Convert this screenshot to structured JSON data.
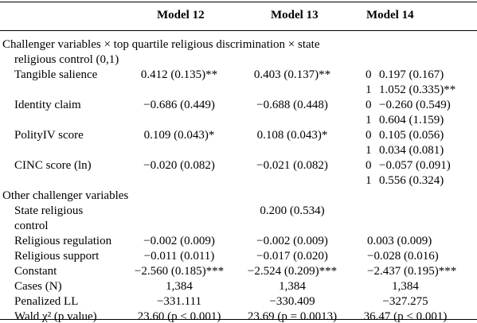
{
  "headers": {
    "col0": "",
    "model12": "Model 12",
    "model13": "Model 13",
    "model14": "Model 14"
  },
  "sections": [
    {
      "title_lines": [
        "Challenger variables × top quartile religious discrimination × state",
        "religious control (0,1)"
      ],
      "rows": [
        {
          "label_lines": [
            "Tangible salience"
          ],
          "m12": "0.412 (0.135)**",
          "m13": "0.403 (0.137)**",
          "m14": [
            {
              "flag": "0",
              "val": "0.197 (0.167)"
            },
            {
              "flag": "1",
              "val": "1.052 (0.335)**"
            }
          ]
        },
        {
          "label_lines": [
            "Identity claim"
          ],
          "m12": "−0.686 (0.449)",
          "m13": "−0.688 (0.448)",
          "m14": [
            {
              "flag": "0",
              "val": "−0.260 (0.549)"
            },
            {
              "flag": "1",
              "val": "0.604 (1.159)"
            }
          ]
        },
        {
          "label_lines": [
            "PolityIV score"
          ],
          "m12": "0.109 (0.043)*",
          "m13": "0.108 (0.043)*",
          "m14": [
            {
              "flag": "0",
              "val": "0.105 (0.056)"
            },
            {
              "flag": "1",
              "val": "0.034 (0.081)"
            }
          ]
        },
        {
          "label_lines": [
            "CINC score (ln)"
          ],
          "m12": "−0.020 (0.082)",
          "m13": "−0.021 (0.082)",
          "m14": [
            {
              "flag": "0",
              "val": "−0.057 (0.091)"
            },
            {
              "flag": "1",
              "val": "0.556 (0.324)"
            }
          ]
        }
      ]
    },
    {
      "title_lines": [
        "Other challenger variables"
      ],
      "rows": [
        {
          "label_lines": [
            "State religious",
            "control"
          ],
          "m12": "",
          "m13": "0.200 (0.534)",
          "m14": []
        },
        {
          "label_lines": [
            "Religious regulation"
          ],
          "m12": "−0.002 (0.009)",
          "m13": "−0.002 (0.009)",
          "m14": [
            {
              "flag": "",
              "val": "0.003 (0.009)"
            }
          ]
        },
        {
          "label_lines": [
            "Religious support"
          ],
          "m12": "−0.011 (0.011)",
          "m13": "−0.017 (0.020)",
          "m14": [
            {
              "flag": "",
              "val": "−0.028 (0.016)"
            }
          ]
        },
        {
          "label_lines": [
            "Constant"
          ],
          "m12": "−2.560 (0.185)***",
          "m13": "−2.524 (0.209)***",
          "m14": [
            {
              "flag": "",
              "val": "−2.437 (0.195)***"
            }
          ]
        }
      ]
    }
  ],
  "stats": [
    {
      "label": "Cases (N)",
      "m12": "1,384",
      "m13": "1,384",
      "m14": "1,384"
    },
    {
      "label": "Penalized LL",
      "m12": "−331.111",
      "m13": "−330.409",
      "m14": "−327.275"
    },
    {
      "label": "Wald χ² (p value)",
      "m12": "23.60 (p < 0.001)",
      "m13": "23.69 (p = 0.0013)",
      "m14": "36.47 (p < 0.001)"
    }
  ]
}
